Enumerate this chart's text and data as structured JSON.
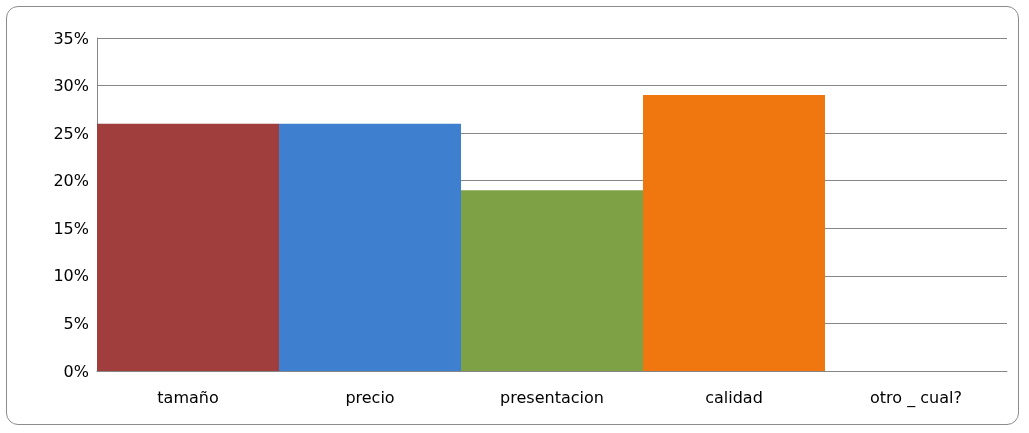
{
  "chart_data": {
    "type": "bar",
    "categories": [
      "tamaño",
      "precio",
      "presentacion",
      "calidad",
      "otro _ cual?"
    ],
    "values": [
      26,
      26,
      19,
      29,
      0
    ],
    "colors": [
      "#a03d3d",
      "#3f7fcf",
      "#7fa146",
      "#f0770f",
      "#808080"
    ],
    "ylim": [
      0,
      35
    ],
    "yticks": [
      {
        "value": 0,
        "label": "0%"
      },
      {
        "value": 5,
        "label": "5%"
      },
      {
        "value": 10,
        "label": "10%"
      },
      {
        "value": 15,
        "label": "15%"
      },
      {
        "value": 20,
        "label": "20%"
      },
      {
        "value": 25,
        "label": "25%"
      },
      {
        "value": 30,
        "label": "30%"
      },
      {
        "value": 35,
        "label": "35%"
      }
    ],
    "grid": "y"
  }
}
